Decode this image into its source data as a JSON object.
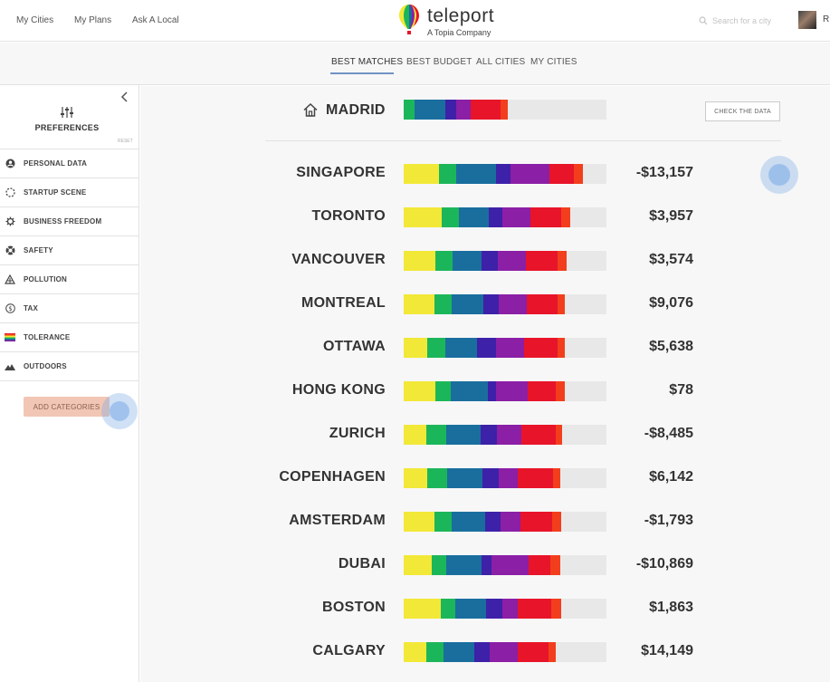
{
  "nav": {
    "links": [
      "My Cities",
      "My Plans",
      "Ask A Local"
    ]
  },
  "logo": {
    "name": "teleport",
    "tagline": "A Topia Company"
  },
  "search": {
    "placeholder": "Search for a city"
  },
  "user": {
    "initial": "R"
  },
  "tabs": [
    "BEST MATCHES",
    "BEST BUDGET",
    "ALL CITIES",
    "MY CITIES"
  ],
  "active_tab": "BEST MATCHES",
  "sidebar": {
    "title": "PREFERENCES",
    "reset": "RESET",
    "categories": [
      {
        "label": "PERSONAL DATA",
        "icon": "user-circle-icon"
      },
      {
        "label": "STARTUP SCENE",
        "icon": "startup-dots-icon"
      },
      {
        "label": "BUSINESS FREEDOM",
        "icon": "gear-icon"
      },
      {
        "label": "SAFETY",
        "icon": "lifebuoy-icon"
      },
      {
        "label": "POLLUTION",
        "icon": "warning-triangle-icon"
      },
      {
        "label": "TAX",
        "icon": "dollar-circle-icon"
      },
      {
        "label": "TOLERANCE",
        "icon": "rainbow-flag-icon"
      },
      {
        "label": "OUTDOORS",
        "icon": "mountain-icon"
      }
    ],
    "add_button": "ADD CATEGORIES"
  },
  "colors": {
    "yellow": "#f2e838",
    "green": "#1cb65a",
    "blue": "#1a6e9e",
    "indigo": "#3d21a8",
    "purple": "#8b1fa6",
    "red": "#e8142a",
    "orange": "#f23e1c",
    "empty": "#e8e8e8",
    "accent": "#6f93c4"
  },
  "home": {
    "name": "MADRID",
    "check_button": "CHECK THE DATA",
    "segments": [
      0,
      0.054,
      0.152,
      0.054,
      0.071,
      0.147,
      0.036
    ]
  },
  "cities": [
    {
      "name": "SINGAPORE",
      "value": "-$13,157",
      "segments": [
        0.174,
        0.085,
        0.196,
        0.071,
        0.192,
        0.121,
        0.045
      ]
    },
    {
      "name": "TORONTO",
      "value": "$3,957",
      "segments": [
        0.188,
        0.085,
        0.147,
        0.067,
        0.138,
        0.152,
        0.045
      ]
    },
    {
      "name": "VANCOUVER",
      "value": "$3,574",
      "segments": [
        0.156,
        0.085,
        0.143,
        0.08,
        0.138,
        0.156,
        0.045
      ]
    },
    {
      "name": "MONTREAL",
      "value": "$9,076",
      "segments": [
        0.152,
        0.085,
        0.156,
        0.076,
        0.138,
        0.152,
        0.036
      ]
    },
    {
      "name": "OTTAWA",
      "value": "$5,638",
      "segments": [
        0.116,
        0.089,
        0.156,
        0.094,
        0.138,
        0.165,
        0.036
      ]
    },
    {
      "name": "HONG KONG",
      "value": "$78",
      "segments": [
        0.156,
        0.076,
        0.183,
        0.04,
        0.156,
        0.138,
        0.045
      ]
    },
    {
      "name": "ZURICH",
      "value": "-$8,485",
      "segments": [
        0.112,
        0.098,
        0.17,
        0.08,
        0.121,
        0.17,
        0.031
      ]
    },
    {
      "name": "COPENHAGEN",
      "value": "$6,142",
      "segments": [
        0.116,
        0.098,
        0.174,
        0.08,
        0.094,
        0.174,
        0.036
      ]
    },
    {
      "name": "AMSTERDAM",
      "value": "-$1,793",
      "segments": [
        0.152,
        0.085,
        0.165,
        0.076,
        0.098,
        0.156,
        0.045
      ]
    },
    {
      "name": "DUBAI",
      "value": "-$10,869",
      "segments": [
        0.138,
        0.071,
        0.174,
        0.049,
        0.183,
        0.107,
        0.049
      ]
    },
    {
      "name": "BOSTON",
      "value": "$1,863",
      "segments": [
        0.183,
        0.071,
        0.152,
        0.08,
        0.076,
        0.165,
        0.049
      ]
    },
    {
      "name": "CALGARY",
      "value": "$14,149",
      "segments": [
        0.112,
        0.085,
        0.152,
        0.076,
        0.138,
        0.152,
        0.036
      ]
    }
  ]
}
